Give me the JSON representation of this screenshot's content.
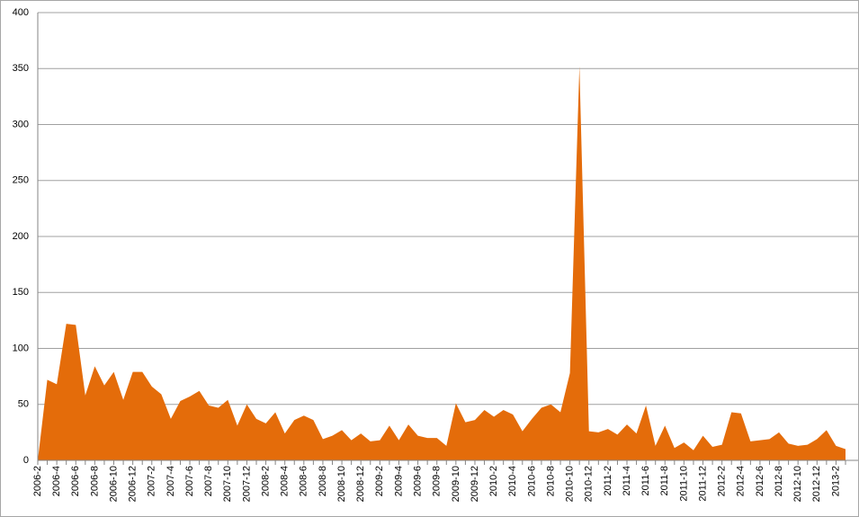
{
  "chart_data": {
    "type": "area",
    "categories": [
      "2006-2",
      null,
      "2006-4",
      null,
      "2006-6",
      null,
      "2006-8",
      null,
      "2006-10",
      null,
      "2006-12",
      null,
      "2007-2",
      null,
      "2007-4",
      null,
      "2007-6",
      null,
      "2007-8",
      null,
      "2007-10",
      null,
      "2007-12",
      null,
      "2008-2",
      null,
      "2008-4",
      null,
      "2008-6",
      null,
      "2008-8",
      null,
      "2008-10",
      null,
      "2008-12",
      null,
      "2009-2",
      null,
      "2009-4",
      null,
      "2009-6",
      null,
      "2009-8",
      null,
      "2009-10",
      null,
      "2009-12",
      null,
      "2010-2",
      null,
      "2010-4",
      null,
      "2010-6",
      null,
      "2010-8",
      null,
      "2010-10",
      null,
      "2010-12",
      null,
      "2011-2",
      null,
      "2011-4",
      null,
      "2011-6",
      null,
      "2011-8",
      null,
      "2011-10",
      null,
      "2011-12",
      null,
      "2012-2",
      null,
      "2012-4",
      null,
      "2012-6",
      null,
      "2012-8",
      null,
      "2012-10",
      null,
      "2012-12",
      null,
      "2013-2",
      null
    ],
    "values": [
      0,
      72,
      68,
      122,
      121,
      58,
      84,
      67,
      79,
      54,
      79,
      79,
      66,
      59,
      37,
      53,
      57,
      62,
      49,
      47,
      54,
      31,
      50,
      37,
      33,
      43,
      24,
      36,
      40,
      36,
      19,
      22,
      27,
      18,
      24,
      17,
      18,
      31,
      18,
      32,
      22,
      20,
      20,
      13,
      51,
      34,
      36,
      45,
      39,
      45,
      41,
      26,
      37,
      47,
      50,
      43,
      78,
      352,
      26,
      25,
      28,
      23,
      32,
      24,
      49,
      13,
      31,
      11,
      16,
      9,
      22,
      12,
      14,
      43,
      42,
      17,
      18,
      19,
      25,
      15,
      13,
      14,
      19,
      27,
      13,
      10
    ],
    "color": "#e46c0a",
    "ylim": [
      0,
      400
    ],
    "yticks": [
      0,
      50,
      100,
      150,
      200,
      250,
      300,
      350,
      400
    ],
    "grid": true
  }
}
